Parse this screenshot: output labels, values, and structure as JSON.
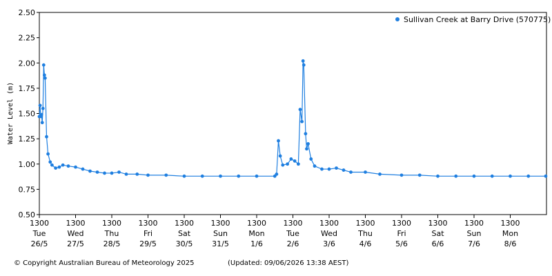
{
  "chart_data": {
    "type": "line",
    "y_label": "Water Level (m)",
    "x": [
      0.0,
      0.02,
      0.04,
      0.06,
      0.08,
      0.1,
      0.12,
      0.14,
      0.16,
      0.2,
      0.24,
      0.3,
      0.35,
      0.45,
      0.55,
      0.65,
      0.8,
      1.0,
      1.2,
      1.4,
      1.6,
      1.8,
      2.0,
      2.2,
      2.4,
      2.7,
      3.0,
      3.5,
      4.0,
      4.5,
      5.0,
      5.5,
      6.0,
      6.5,
      6.55,
      6.6,
      6.65,
      6.72,
      6.85,
      6.95,
      7.05,
      7.15,
      7.2,
      7.25,
      7.28,
      7.3,
      7.35,
      7.38,
      7.42,
      7.5,
      7.6,
      7.8,
      8.0,
      8.2,
      8.4,
      8.6,
      9.0,
      9.4,
      10.0,
      10.5,
      11.0,
      11.5,
      12.0,
      12.5,
      13.0,
      13.5,
      13.98
    ],
    "series": [
      {
        "name": "Sullivan Creek at Barry Drive (570775)",
        "color": "#1f7fe0",
        "values": [
          1.47,
          1.58,
          1.47,
          1.49,
          1.41,
          1.55,
          1.98,
          1.88,
          1.85,
          1.27,
          1.1,
          1.02,
          0.99,
          0.96,
          0.97,
          0.99,
          0.98,
          0.97,
          0.95,
          0.93,
          0.92,
          0.91,
          0.91,
          0.92,
          0.9,
          0.9,
          0.89,
          0.89,
          0.88,
          0.88,
          0.88,
          0.88,
          0.88,
          0.88,
          0.9,
          1.23,
          1.08,
          0.99,
          1.0,
          1.05,
          1.03,
          1.0,
          1.54,
          1.42,
          2.02,
          1.98,
          1.3,
          1.15,
          1.2,
          1.05,
          0.98,
          0.95,
          0.95,
          0.96,
          0.94,
          0.92,
          0.92,
          0.9,
          0.89,
          0.89,
          0.88,
          0.88,
          0.88,
          0.88,
          0.88,
          0.88,
          0.88
        ]
      }
    ],
    "xlim": [
      0,
      14
    ],
    "xticks": [
      {
        "value": 0,
        "label": [
          "1300",
          "Tue",
          "26/5"
        ]
      },
      {
        "value": 1,
        "label": [
          "1300",
          "Wed",
          "27/5"
        ]
      },
      {
        "value": 2,
        "label": [
          "1300",
          "Thu",
          "28/5"
        ]
      },
      {
        "value": 3,
        "label": [
          "1300",
          "Fri",
          "29/5"
        ]
      },
      {
        "value": 4,
        "label": [
          "1300",
          "Sat",
          "30/5"
        ]
      },
      {
        "value": 5,
        "label": [
          "1300",
          "Sun",
          "31/5"
        ]
      },
      {
        "value": 6,
        "label": [
          "1300",
          "Mon",
          "1/6"
        ]
      },
      {
        "value": 7,
        "label": [
          "1300",
          "Tue",
          "2/6"
        ]
      },
      {
        "value": 8,
        "label": [
          "1300",
          "Wed",
          "3/6"
        ]
      },
      {
        "value": 9,
        "label": [
          "1300",
          "Thu",
          "4/6"
        ]
      },
      {
        "value": 10,
        "label": [
          "1300",
          "Fri",
          "5/6"
        ]
      },
      {
        "value": 11,
        "label": [
          "1300",
          "Sat",
          "6/6"
        ]
      },
      {
        "value": 12,
        "label": [
          "1300",
          "Sun",
          "7/6"
        ]
      },
      {
        "value": 13,
        "label": [
          "1300",
          "Mon",
          "8/6"
        ]
      }
    ],
    "ylim": [
      0.5,
      2.5
    ],
    "yticks": [
      {
        "value": 0.5,
        "label": "0.50"
      },
      {
        "value": 0.75,
        "label": "0.75"
      },
      {
        "value": 1,
        "label": "1.00"
      },
      {
        "value": 1.25,
        "label": "1.25"
      },
      {
        "value": 1.5,
        "label": "1.50"
      },
      {
        "value": 1.75,
        "label": "1.75"
      },
      {
        "value": 2,
        "label": "2.00"
      },
      {
        "value": 2.25,
        "label": "2.25"
      },
      {
        "value": 2.5,
        "label": "2.50"
      }
    ],
    "grid": false,
    "legend": "top-right",
    "copyright": "© Copyright Australian Bureau of Meteorology 2025",
    "updated": "(Updated: 09/06/2026 13:38 AEST)"
  }
}
